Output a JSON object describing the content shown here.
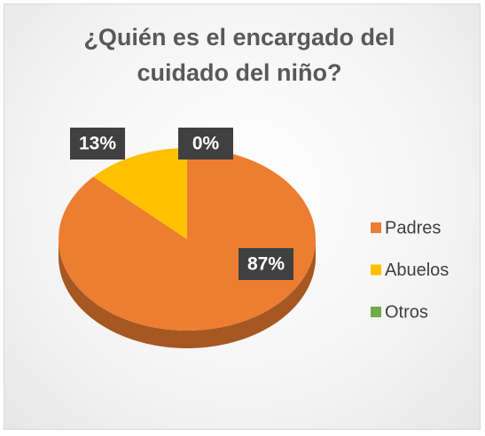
{
  "chart_data": {
    "type": "pie",
    "title": "¿Quién es el encargado del cuidado del niño?",
    "categories": [
      "Padres",
      "Abuelos",
      "Otros"
    ],
    "values": [
      87,
      13,
      0
    ],
    "value_labels": [
      "87%",
      "13%",
      "0%"
    ],
    "colors": [
      "#ED7D31",
      "#FFC000",
      "#70AD47"
    ],
    "legend": "right"
  }
}
